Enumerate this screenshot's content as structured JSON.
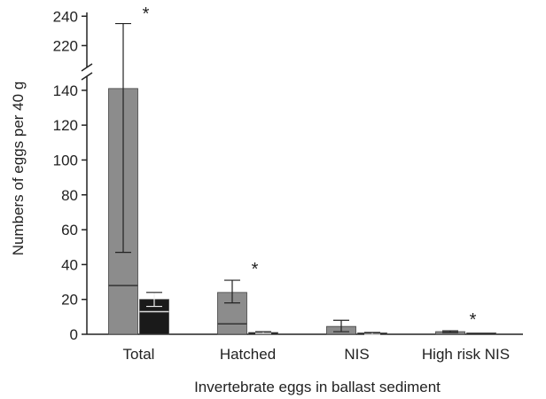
{
  "chart_data": {
    "type": "bar",
    "xlabel": "Invertebrate eggs in ballast sediment",
    "ylabel": "Numbers of eggs per 40 g",
    "categories": [
      "Total",
      "Hatched",
      "NIS",
      "High risk NIS"
    ],
    "y_lower_range": [
      0,
      145
    ],
    "y_upper_range": [
      210,
      245
    ],
    "y_break": [
      145,
      210
    ],
    "y_ticks_lower": [
      "0",
      "20",
      "40",
      "60",
      "80",
      "100",
      "120",
      "140"
    ],
    "y_ticks_upper": [
      "220",
      "240"
    ],
    "grid": false,
    "series": [
      {
        "color": "#8c8c8c",
        "values": [
          141,
          24,
          4.5,
          1.5
        ],
        "error_upper": [
          235,
          31,
          8,
          2
        ],
        "error_lower": [
          47,
          18,
          1.5,
          1
        ],
        "median": [
          28,
          6,
          0,
          0
        ]
      },
      {
        "color": "#1a1a1a",
        "values": [
          20,
          1,
          0.5,
          0.3
        ],
        "error_upper": [
          24,
          1.5,
          1,
          0.5
        ],
        "error_lower": [
          16,
          0.5,
          0,
          0
        ],
        "median": [
          13,
          0,
          0,
          0
        ]
      }
    ],
    "significance": [
      "*",
      "*",
      "",
      "*"
    ]
  }
}
